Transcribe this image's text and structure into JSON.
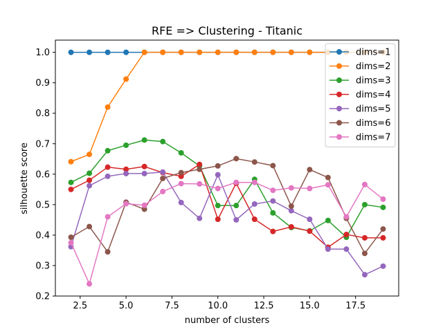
{
  "chart_data": {
    "type": "line",
    "title": "RFE => Clustering - Titanic",
    "xlabel": "number of clusters",
    "ylabel": "silhouette score",
    "xlim": [
      1.15,
      19.85
    ],
    "ylim": [
      0.2,
      1.04
    ],
    "xticks": [
      2.5,
      5.0,
      7.5,
      10.0,
      12.5,
      15.0,
      17.5
    ],
    "xtick_labels": [
      "2.5",
      "5.0",
      "7.5",
      "10.0",
      "12.5",
      "15.0",
      "17.5"
    ],
    "yticks": [
      0.2,
      0.3,
      0.4,
      0.5,
      0.6,
      0.7,
      0.8,
      0.9,
      1.0
    ],
    "ytick_labels": [
      "0.2",
      "0.3",
      "0.4",
      "0.5",
      "0.6",
      "0.7",
      "0.8",
      "0.9",
      "1.0"
    ],
    "grid": false,
    "legend_position": "top-right",
    "x": [
      2,
      3,
      4,
      5,
      6,
      7,
      8,
      9,
      10,
      11,
      12,
      13,
      14,
      15,
      16,
      17,
      18,
      19
    ],
    "series": [
      {
        "name": "dims=1",
        "color": "#1f77b4",
        "values": [
          1.0,
          1.0,
          1.0,
          1.0,
          1.0,
          1.0,
          1.0,
          1.0,
          1.0,
          1.0,
          1.0,
          1.0,
          1.0,
          1.0,
          1.0,
          1.0,
          1.0,
          1.0
        ]
      },
      {
        "name": "dims=2",
        "color": "#ff7f0e",
        "values": [
          0.641,
          0.665,
          0.82,
          0.912,
          1.0,
          1.0,
          1.0,
          1.0,
          1.0,
          1.0,
          1.0,
          1.0,
          1.0,
          1.0,
          1.0,
          1.0,
          1.0,
          1.0
        ]
      },
      {
        "name": "dims=3",
        "color": "#2ca02c",
        "values": [
          0.573,
          0.603,
          0.677,
          0.695,
          0.712,
          0.707,
          0.67,
          0.627,
          0.497,
          0.497,
          0.583,
          0.473,
          0.425,
          0.414,
          0.448,
          0.393,
          0.5,
          0.491
        ]
      },
      {
        "name": "dims=4",
        "color": "#d62728",
        "values": [
          0.55,
          0.58,
          0.623,
          0.616,
          0.625,
          0.605,
          0.593,
          0.632,
          0.452,
          0.57,
          0.452,
          0.412,
          0.427,
          0.413,
          0.36,
          0.402,
          0.391,
          0.391
        ]
      },
      {
        "name": "dims=5",
        "color": "#9467bd",
        "values": [
          0.362,
          0.562,
          0.593,
          0.602,
          0.602,
          0.607,
          0.507,
          0.455,
          0.598,
          0.45,
          0.502,
          0.512,
          0.48,
          0.452,
          0.354,
          0.354,
          0.27,
          0.298
        ]
      },
      {
        "name": "dims=6",
        "color": "#8c564b",
        "values": [
          0.393,
          0.428,
          0.345,
          0.508,
          0.485,
          0.586,
          0.605,
          0.616,
          0.627,
          0.651,
          0.64,
          0.628,
          0.495,
          0.615,
          0.589,
          0.455,
          0.34,
          0.42
        ]
      },
      {
        "name": "dims=7",
        "color": "#e377c2",
        "values": [
          0.375,
          0.24,
          0.46,
          0.503,
          0.498,
          0.543,
          0.569,
          0.568,
          0.553,
          0.573,
          0.573,
          0.547,
          0.555,
          0.553,
          0.565,
          0.46,
          0.566,
          0.518
        ]
      }
    ]
  }
}
